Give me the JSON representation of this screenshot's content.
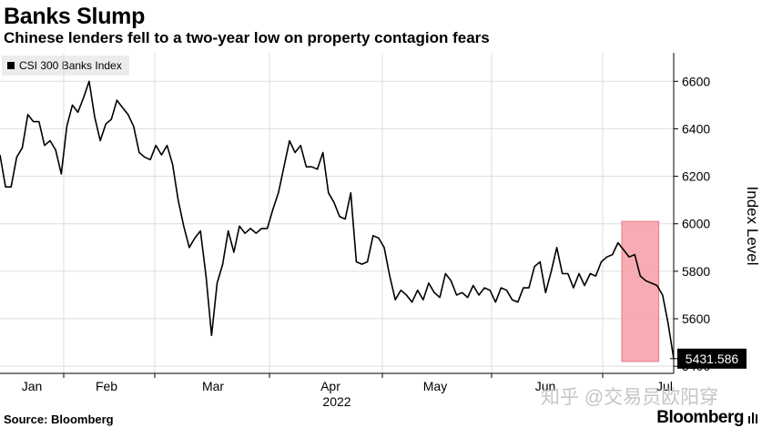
{
  "header": {
    "title": "Banks Slump",
    "subtitle": "Chinese lenders fell to a two-year low on property contagion fears"
  },
  "legend": {
    "label": "CSI 300 Banks Index"
  },
  "footer": {
    "source": "Source: Bloomberg",
    "brand": "Bloomberg"
  },
  "watermark": "知乎 @交易员欧阳穿",
  "colors": {
    "line": "#000000",
    "highlight": "#f8a2ab",
    "highlight_border": "#e0707c",
    "grid": "#dddddd"
  },
  "chart_data": {
    "type": "line",
    "title": "Banks Slump",
    "subtitle": "Chinese lenders fell to a two-year low on property contagion fears",
    "ylabel": "Index Level",
    "ylim": [
      5370,
      6720
    ],
    "yticks": [
      5400,
      5600,
      5800,
      6000,
      6200,
      6400,
      6600
    ],
    "xticks": [
      "Jan",
      "Feb",
      "Mar",
      "Apr",
      "May",
      "Jun",
      "Jul"
    ],
    "year_label": "2022",
    "legend_position": "top-left",
    "grid": true,
    "last_value_label": "5431.586",
    "highlight": {
      "from_index": 112,
      "to_index": 118,
      "ymin": 5420,
      "ymax": 6010
    },
    "series": [
      {
        "name": "CSI 300 Banks Index",
        "values": [
          6290,
          6155,
          6155,
          6280,
          6320,
          6460,
          6430,
          6430,
          6330,
          6350,
          6310,
          6210,
          6410,
          6500,
          6470,
          6530,
          6600,
          6450,
          6350,
          6420,
          6440,
          6520,
          6490,
          6460,
          6410,
          6300,
          6280,
          6270,
          6330,
          6290,
          6330,
          6250,
          6100,
          5990,
          5900,
          5940,
          5970,
          5780,
          5530,
          5750,
          5830,
          5970,
          5880,
          5990,
          5960,
          5980,
          5960,
          5980,
          5980,
          6060,
          6130,
          6240,
          6350,
          6300,
          6330,
          6240,
          6240,
          6230,
          6300,
          6130,
          6090,
          6030,
          6020,
          6130,
          5840,
          5830,
          5840,
          5950,
          5940,
          5900,
          5780,
          5680,
          5720,
          5700,
          5670,
          5720,
          5680,
          5750,
          5710,
          5690,
          5790,
          5760,
          5700,
          5710,
          5690,
          5740,
          5700,
          5730,
          5720,
          5670,
          5730,
          5720,
          5680,
          5670,
          5730,
          5730,
          5820,
          5840,
          5710,
          5800,
          5900,
          5790,
          5790,
          5730,
          5790,
          5740,
          5790,
          5780,
          5840,
          5860,
          5870,
          5920,
          5890,
          5860,
          5870,
          5780,
          5760,
          5750,
          5740,
          5700,
          5580,
          5432
        ]
      }
    ]
  }
}
